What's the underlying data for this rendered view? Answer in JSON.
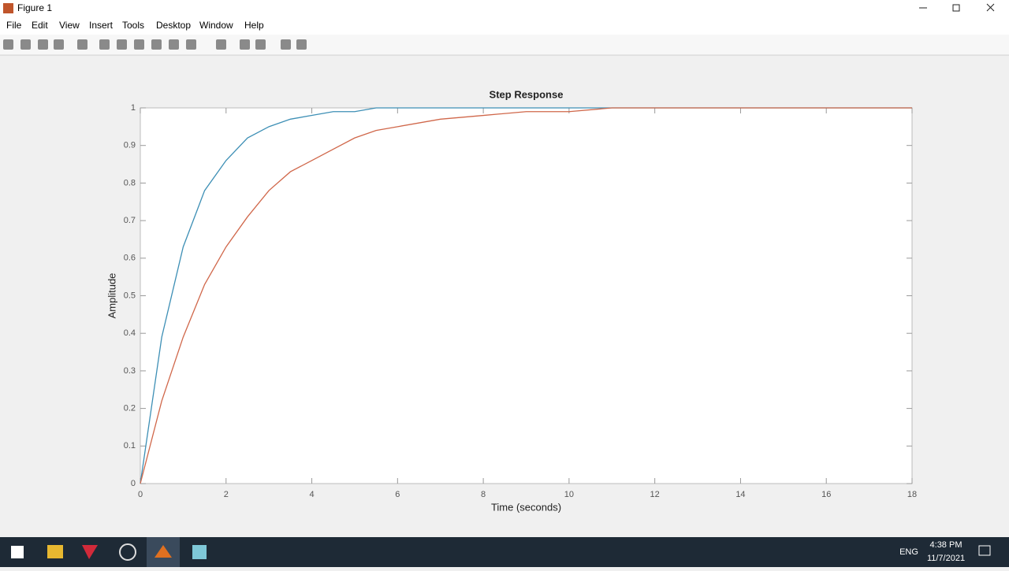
{
  "window": {
    "title": "Figure 1"
  },
  "menu": [
    "File",
    "Edit",
    "View",
    "Insert",
    "Tools",
    "Desktop",
    "Window",
    "Help"
  ],
  "chart_data": {
    "type": "line",
    "title": "Step Response",
    "x_label": "Time (seconds)",
    "y_label": "Amplitude",
    "x": [
      0,
      0.5,
      1,
      1.5,
      2,
      2.5,
      3,
      3.5,
      4,
      4.5,
      5,
      5.5,
      6,
      7,
      8,
      9,
      10,
      11,
      12,
      13,
      14,
      15,
      16,
      17,
      18
    ],
    "series": [
      {
        "color": "#3d8fb5",
        "values": [
          0,
          0.39,
          0.63,
          0.78,
          0.86,
          0.92,
          0.95,
          0.97,
          0.98,
          0.99,
          0.99,
          1.0,
          1.0,
          1.0,
          1.0,
          1.0,
          1.0,
          1.0,
          1.0,
          1.0,
          1.0,
          1.0,
          1.0,
          1.0,
          1.0
        ]
      },
      {
        "color": "#d0674a",
        "values": [
          0,
          0.22,
          0.39,
          0.53,
          0.63,
          0.71,
          0.78,
          0.83,
          0.86,
          0.89,
          0.92,
          0.94,
          0.95,
          0.97,
          0.98,
          0.99,
          0.99,
          1.0,
          1.0,
          1.0,
          1.0,
          1.0,
          1.0,
          1.0,
          1.0
        ]
      }
    ],
    "xlim": [
      0,
      18
    ],
    "xticks": [
      0,
      2,
      4,
      6,
      8,
      10,
      12,
      14,
      16,
      18
    ],
    "ylim": [
      0,
      1
    ],
    "yticks": [
      0,
      0.1,
      0.2,
      0.3,
      0.4,
      0.5,
      0.6,
      0.7,
      0.8,
      0.9,
      1
    ],
    "grid": false
  },
  "taskbar": {
    "language": "ENG",
    "time": "4:38 PM",
    "date": "11/7/2021"
  }
}
